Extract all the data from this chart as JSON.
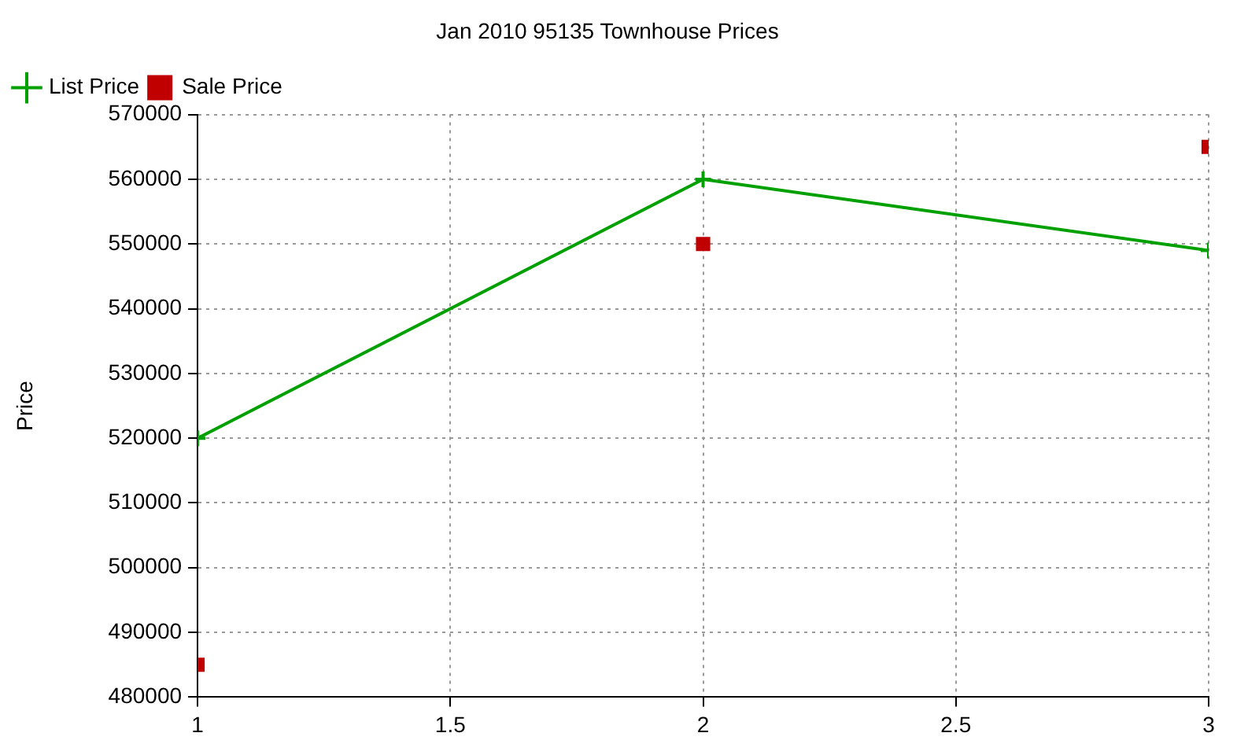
{
  "chart_data": {
    "type": "line",
    "title": "Jan 2010 95135 Townhouse Prices",
    "ylabel": "Price",
    "x": [
      1,
      2,
      3
    ],
    "series": [
      {
        "name": "List Price",
        "type": "line",
        "color": "#00a000",
        "marker": "cross",
        "values": [
          520000,
          560000,
          549000
        ]
      },
      {
        "name": "Sale Price",
        "type": "scatter",
        "color": "#c00000",
        "marker": "square",
        "values": [
          485000,
          550000,
          565000
        ]
      }
    ],
    "xlim": [
      1,
      3
    ],
    "xticks": [
      1,
      1.5,
      2,
      2.5,
      3
    ],
    "ylim": [
      480000,
      570000
    ],
    "yticks": [
      480000,
      490000,
      500000,
      510000,
      520000,
      530000,
      540000,
      550000,
      560000,
      570000
    ],
    "grid": true,
    "legend": "top left",
    "line_style": "solid"
  }
}
